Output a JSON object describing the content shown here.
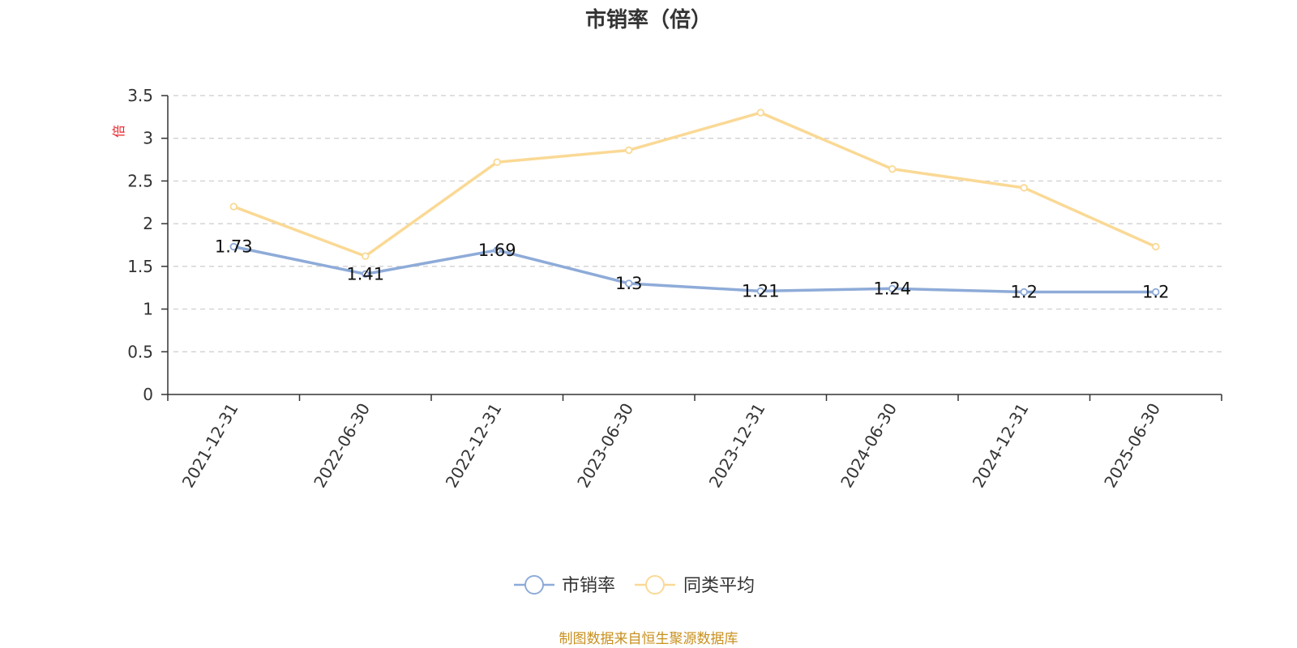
{
  "chart_data": {
    "type": "line",
    "title": "市销率（倍）",
    "ylabel": "倍",
    "xlabel": "",
    "categories": [
      "2021-12-31",
      "2022-06-30",
      "2022-12-31",
      "2023-06-30",
      "2023-12-31",
      "2024-06-30",
      "2024-12-31",
      "2025-06-30"
    ],
    "ylim": [
      0,
      3.5
    ],
    "yticks": [
      "0",
      "0.5",
      "1",
      "1.5",
      "2",
      "2.5",
      "3",
      "3.5"
    ],
    "grid": true,
    "legend_position": "bottom",
    "series": [
      {
        "name": "市销率",
        "color": "#8eabd8",
        "values": [
          1.73,
          1.41,
          1.69,
          1.3,
          1.21,
          1.24,
          1.2,
          1.2
        ],
        "labels": [
          "1.73",
          "1.41",
          "1.69",
          "1.3",
          "1.21",
          "1.24",
          "1.2",
          "1.2"
        ]
      },
      {
        "name": "同类平均",
        "color": "#fad995",
        "values": [
          2.2,
          1.62,
          2.72,
          2.86,
          3.3,
          2.64,
          2.42,
          1.73
        ]
      }
    ],
    "source": "制图数据来自恒生聚源数据库"
  }
}
